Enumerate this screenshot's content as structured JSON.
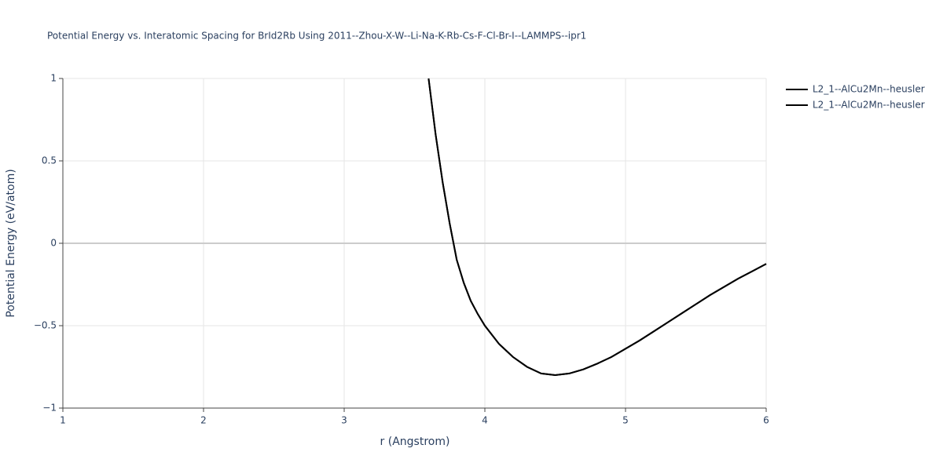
{
  "chart_data": {
    "type": "line",
    "title": "Potential Energy vs. Interatomic Spacing for BrId2Rb Using 2011--Zhou-X-W--Li-Na-K-Rb-Cs-F-Cl-Br-I--LAMMPS--ipr1",
    "x_label": "r (Angstrom)",
    "y_label": "Potential Energy (eV/atom)",
    "x": [
      3.6,
      3.65,
      3.7,
      3.75,
      3.8,
      3.85,
      3.9,
      3.95,
      4.0,
      4.1,
      4.2,
      4.3,
      4.4,
      4.5,
      4.6,
      4.7,
      4.8,
      4.9,
      5.0,
      5.1,
      5.2,
      5.3,
      5.4,
      5.5,
      5.6,
      5.7,
      5.8,
      5.9,
      6.0
    ],
    "series": [
      {
        "name": "L2_1--AlCu2Mn--heusler",
        "color": "#000000",
        "values": [
          1.0,
          0.66,
          0.37,
          0.12,
          -0.1,
          -0.24,
          -0.35,
          -0.43,
          -0.5,
          -0.61,
          -0.69,
          -0.75,
          -0.79,
          -0.8,
          -0.79,
          -0.765,
          -0.73,
          -0.69,
          -0.64,
          -0.59,
          -0.535,
          -0.48,
          -0.425,
          -0.37,
          -0.315,
          -0.265,
          -0.215,
          -0.17,
          -0.125
        ]
      },
      {
        "name": "L2_1--AlCu2Mn--heusler",
        "color": "#000000",
        "values": [
          1.0,
          0.66,
          0.37,
          0.12,
          -0.1,
          -0.24,
          -0.35,
          -0.43,
          -0.5,
          -0.61,
          -0.69,
          -0.75,
          -0.79,
          -0.8,
          -0.79,
          -0.765,
          -0.73,
          -0.69,
          -0.64,
          -0.59,
          -0.535,
          -0.48,
          -0.425,
          -0.37,
          -0.315,
          -0.265,
          -0.215,
          -0.17,
          -0.125
        ]
      }
    ],
    "xlim": [
      1,
      6
    ],
    "xticks": [
      1,
      2,
      3,
      4,
      5,
      6
    ],
    "ylim": [
      -1,
      1
    ],
    "yticks": [
      {
        "value": -1,
        "label": "−1"
      },
      {
        "value": -0.5,
        "label": "−0.5"
      },
      0,
      0.5,
      1
    ],
    "grid": true,
    "legend": "top-right"
  }
}
